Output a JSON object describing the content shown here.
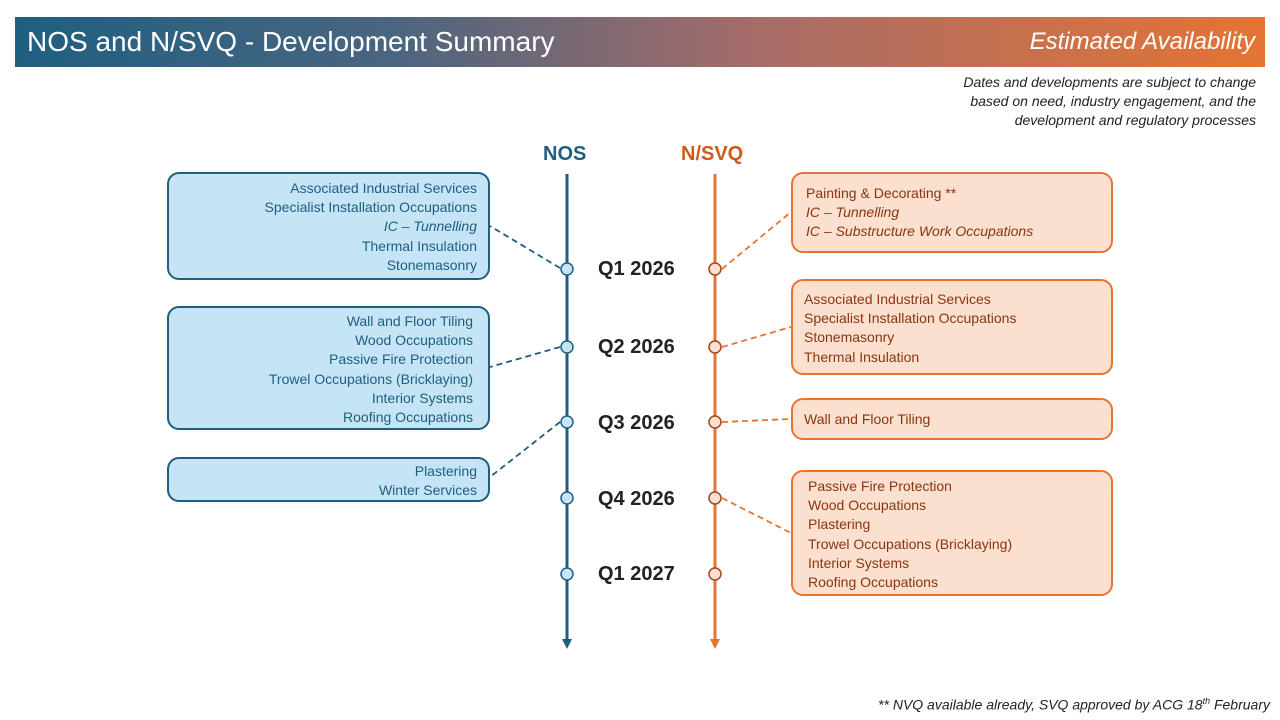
{
  "header": {
    "title": "NOS and N/SVQ - Development Summary",
    "availability": "Estimated Availability"
  },
  "note": [
    "Dates and developments are subject to change",
    "based on need, industry engagement, and the",
    "development and regulatory processes"
  ],
  "columns": {
    "nos": "NOS",
    "nsvq": "N/SVQ"
  },
  "quarters": [
    "Q1 2026",
    "Q2 2026",
    "Q3 2026",
    "Q4 2026",
    "Q1 2027"
  ],
  "nos_boxes": [
    {
      "items": [
        "Associated Industrial Services",
        "Specialist Installation Occupations",
        "IC – Tunnelling",
        "Thermal Insulation",
        "Stonemasonry"
      ],
      "italic": [
        2
      ]
    },
    {
      "items": [
        "Wall and Floor Tiling",
        "Wood Occupations",
        "Passive Fire Protection",
        "Trowel Occupations (Bricklaying)",
        "Interior Systems",
        "Roofing Occupations"
      ],
      "italic": []
    },
    {
      "items": [
        "Plastering",
        "Winter Services"
      ],
      "italic": []
    }
  ],
  "nsvq_boxes": [
    {
      "items": [
        "Painting & Decorating **",
        "IC – Tunnelling",
        "IC – Substructure Work Occupations"
      ],
      "italic": [
        1,
        2
      ]
    },
    {
      "items": [
        "Associated Industrial Services",
        "Specialist Installation Occupations",
        "Stonemasonry",
        "Thermal Insulation"
      ],
      "italic": []
    },
    {
      "items": [
        "Wall and Floor Tiling"
      ],
      "italic": []
    },
    {
      "items": [
        "Passive Fire Protection",
        "Wood Occupations",
        "Plastering",
        "Trowel Occupations (Bricklaying)",
        "Interior Systems",
        "Roofing Occupations"
      ],
      "italic": []
    }
  ],
  "footer": {
    "main": "** NVQ available already, SVQ approved by ACG 18",
    "sup": "th",
    "tail": " February"
  },
  "colors": {
    "nos": "#1e5f80",
    "nsvq": "#e47434",
    "nos_fill": "#c5e4f5",
    "nsvq_fill": "#fbe0cf"
  }
}
